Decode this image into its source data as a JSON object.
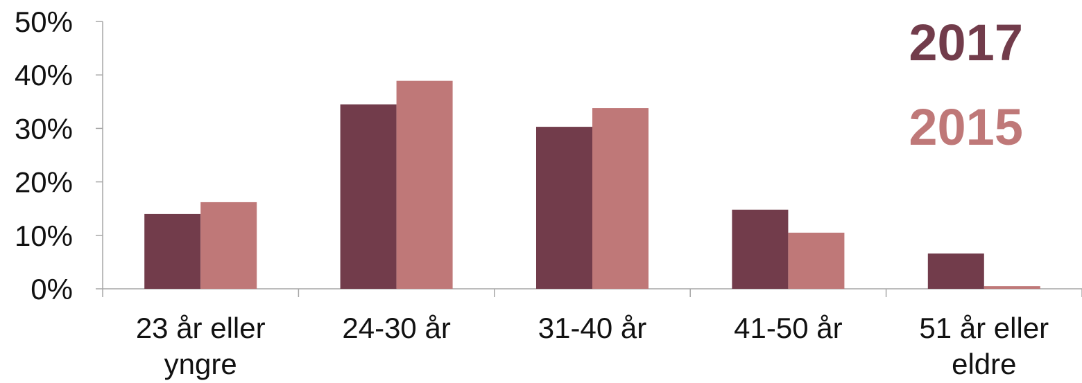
{
  "chart_data": {
    "type": "bar",
    "categories": [
      [
        "23 år eller",
        "yngre"
      ],
      [
        "24-30 år"
      ],
      [
        "31-40 år"
      ],
      [
        "41-50 år"
      ],
      [
        "51 år eller",
        "eldre"
      ]
    ],
    "series": [
      {
        "name": "2017",
        "color": "#723c4b",
        "values": [
          14,
          34.5,
          30.3,
          14.8,
          6.6
        ]
      },
      {
        "name": "2015",
        "color": "#bf7878",
        "values": [
          16.2,
          38.9,
          33.8,
          10.5,
          0.5
        ]
      }
    ],
    "y_ticks": [
      "0%",
      "10%",
      "20%",
      "30%",
      "40%",
      "50%"
    ],
    "ylim": [
      0,
      50
    ],
    "legend_position": "top-right",
    "grid": false
  }
}
